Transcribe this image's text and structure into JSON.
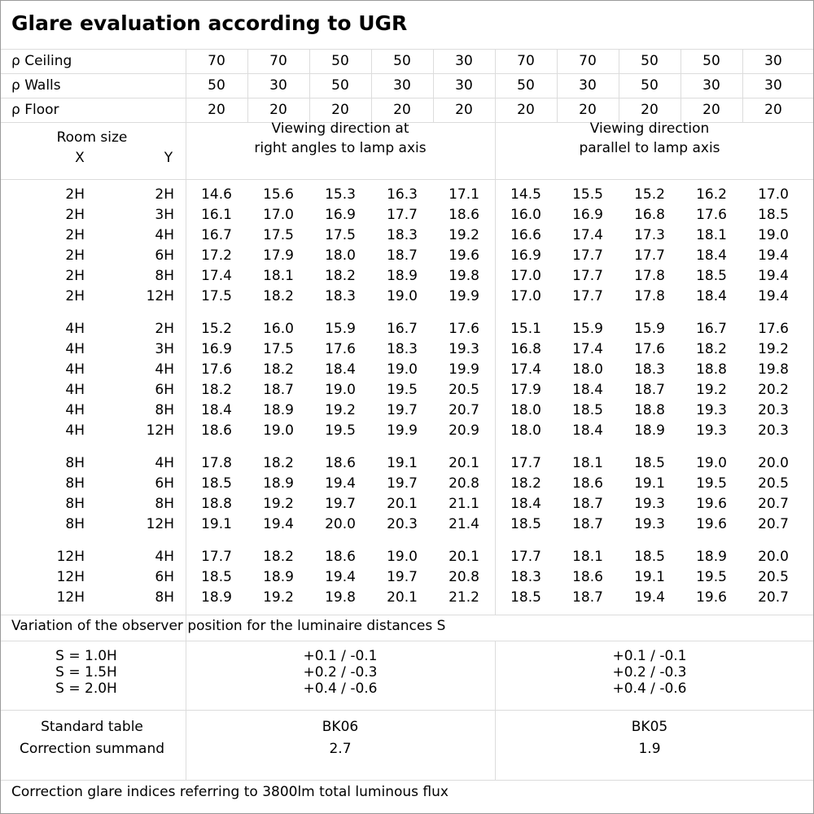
{
  "title": "Glare evaluation according to UGR",
  "reflectance": [
    {
      "label": "ρ Ceiling",
      "values": [
        "70",
        "70",
        "50",
        "50",
        "30",
        "70",
        "70",
        "50",
        "50",
        "30"
      ]
    },
    {
      "label": "ρ Walls",
      "values": [
        "50",
        "30",
        "50",
        "30",
        "30",
        "50",
        "30",
        "50",
        "30",
        "30"
      ]
    },
    {
      "label": "ρ Floor",
      "values": [
        "20",
        "20",
        "20",
        "20",
        "20",
        "20",
        "20",
        "20",
        "20",
        "20"
      ]
    }
  ],
  "header": {
    "room_size": "Room size",
    "x": "X",
    "y": "Y",
    "dir1": [
      "Viewing direction at",
      "right angles to lamp axis"
    ],
    "dir2": [
      "Viewing direction",
      "parallel to lamp axis"
    ]
  },
  "groups": [
    {
      "rows": [
        {
          "x": "2H",
          "y": "2H",
          "v": [
            "14.6",
            "15.6",
            "15.3",
            "16.3",
            "17.1",
            "14.5",
            "15.5",
            "15.2",
            "16.2",
            "17.0"
          ]
        },
        {
          "x": "2H",
          "y": "3H",
          "v": [
            "16.1",
            "17.0",
            "16.9",
            "17.7",
            "18.6",
            "16.0",
            "16.9",
            "16.8",
            "17.6",
            "18.5"
          ]
        },
        {
          "x": "2H",
          "y": "4H",
          "v": [
            "16.7",
            "17.5",
            "17.5",
            "18.3",
            "19.2",
            "16.6",
            "17.4",
            "17.3",
            "18.1",
            "19.0"
          ]
        },
        {
          "x": "2H",
          "y": "6H",
          "v": [
            "17.2",
            "17.9",
            "18.0",
            "18.7",
            "19.6",
            "16.9",
            "17.7",
            "17.7",
            "18.4",
            "19.4"
          ]
        },
        {
          "x": "2H",
          "y": "8H",
          "v": [
            "17.4",
            "18.1",
            "18.2",
            "18.9",
            "19.8",
            "17.0",
            "17.7",
            "17.8",
            "18.5",
            "19.4"
          ]
        },
        {
          "x": "2H",
          "y": "12H",
          "v": [
            "17.5",
            "18.2",
            "18.3",
            "19.0",
            "19.9",
            "17.0",
            "17.7",
            "17.8",
            "18.4",
            "19.4"
          ]
        }
      ]
    },
    {
      "rows": [
        {
          "x": "4H",
          "y": "2H",
          "v": [
            "15.2",
            "16.0",
            "15.9",
            "16.7",
            "17.6",
            "15.1",
            "15.9",
            "15.9",
            "16.7",
            "17.6"
          ]
        },
        {
          "x": "4H",
          "y": "3H",
          "v": [
            "16.9",
            "17.5",
            "17.6",
            "18.3",
            "19.3",
            "16.8",
            "17.4",
            "17.6",
            "18.2",
            "19.2"
          ]
        },
        {
          "x": "4H",
          "y": "4H",
          "v": [
            "17.6",
            "18.2",
            "18.4",
            "19.0",
            "19.9",
            "17.4",
            "18.0",
            "18.3",
            "18.8",
            "19.8"
          ]
        },
        {
          "x": "4H",
          "y": "6H",
          "v": [
            "18.2",
            "18.7",
            "19.0",
            "19.5",
            "20.5",
            "17.9",
            "18.4",
            "18.7",
            "19.2",
            "20.2"
          ]
        },
        {
          "x": "4H",
          "y": "8H",
          "v": [
            "18.4",
            "18.9",
            "19.2",
            "19.7",
            "20.7",
            "18.0",
            "18.5",
            "18.8",
            "19.3",
            "20.3"
          ]
        },
        {
          "x": "4H",
          "y": "12H",
          "v": [
            "18.6",
            "19.0",
            "19.5",
            "19.9",
            "20.9",
            "18.0",
            "18.4",
            "18.9",
            "19.3",
            "20.3"
          ]
        }
      ]
    },
    {
      "rows": [
        {
          "x": "8H",
          "y": "4H",
          "v": [
            "17.8",
            "18.2",
            "18.6",
            "19.1",
            "20.1",
            "17.7",
            "18.1",
            "18.5",
            "19.0",
            "20.0"
          ]
        },
        {
          "x": "8H",
          "y": "6H",
          "v": [
            "18.5",
            "18.9",
            "19.4",
            "19.7",
            "20.8",
            "18.2",
            "18.6",
            "19.1",
            "19.5",
            "20.5"
          ]
        },
        {
          "x": "8H",
          "y": "8H",
          "v": [
            "18.8",
            "19.2",
            "19.7",
            "20.1",
            "21.1",
            "18.4",
            "18.7",
            "19.3",
            "19.6",
            "20.7"
          ]
        },
        {
          "x": "8H",
          "y": "12H",
          "v": [
            "19.1",
            "19.4",
            "20.0",
            "20.3",
            "21.4",
            "18.5",
            "18.7",
            "19.3",
            "19.6",
            "20.7"
          ]
        }
      ]
    },
    {
      "rows": [
        {
          "x": "12H",
          "y": "4H",
          "v": [
            "17.7",
            "18.2",
            "18.6",
            "19.0",
            "20.1",
            "17.7",
            "18.1",
            "18.5",
            "18.9",
            "20.0"
          ]
        },
        {
          "x": "12H",
          "y": "6H",
          "v": [
            "18.5",
            "18.9",
            "19.4",
            "19.7",
            "20.8",
            "18.3",
            "18.6",
            "19.1",
            "19.5",
            "20.5"
          ]
        },
        {
          "x": "12H",
          "y": "8H",
          "v": [
            "18.9",
            "19.2",
            "19.8",
            "20.1",
            "21.2",
            "18.5",
            "18.7",
            "19.4",
            "19.6",
            "20.7"
          ]
        }
      ]
    }
  ],
  "variation": {
    "label": "Variation of the observer position for the luminaire distances S",
    "rows": [
      {
        "s": "S = 1.0H",
        "a": "+0.1 / -0.1",
        "b": "+0.1 / -0.1"
      },
      {
        "s": "S = 1.5H",
        "a": "+0.2 / -0.3",
        "b": "+0.2 / -0.3"
      },
      {
        "s": "S = 2.0H",
        "a": "+0.4 / -0.6",
        "b": "+0.4 / -0.6"
      }
    ]
  },
  "standard": {
    "label_table": "Standard table",
    "label_summand": "Correction summand",
    "table_a": "BK06",
    "table_b": "BK05",
    "summand_a": "2.7",
    "summand_b": "1.9"
  },
  "footer": "Correction glare indices referring to 3800lm total luminous flux"
}
